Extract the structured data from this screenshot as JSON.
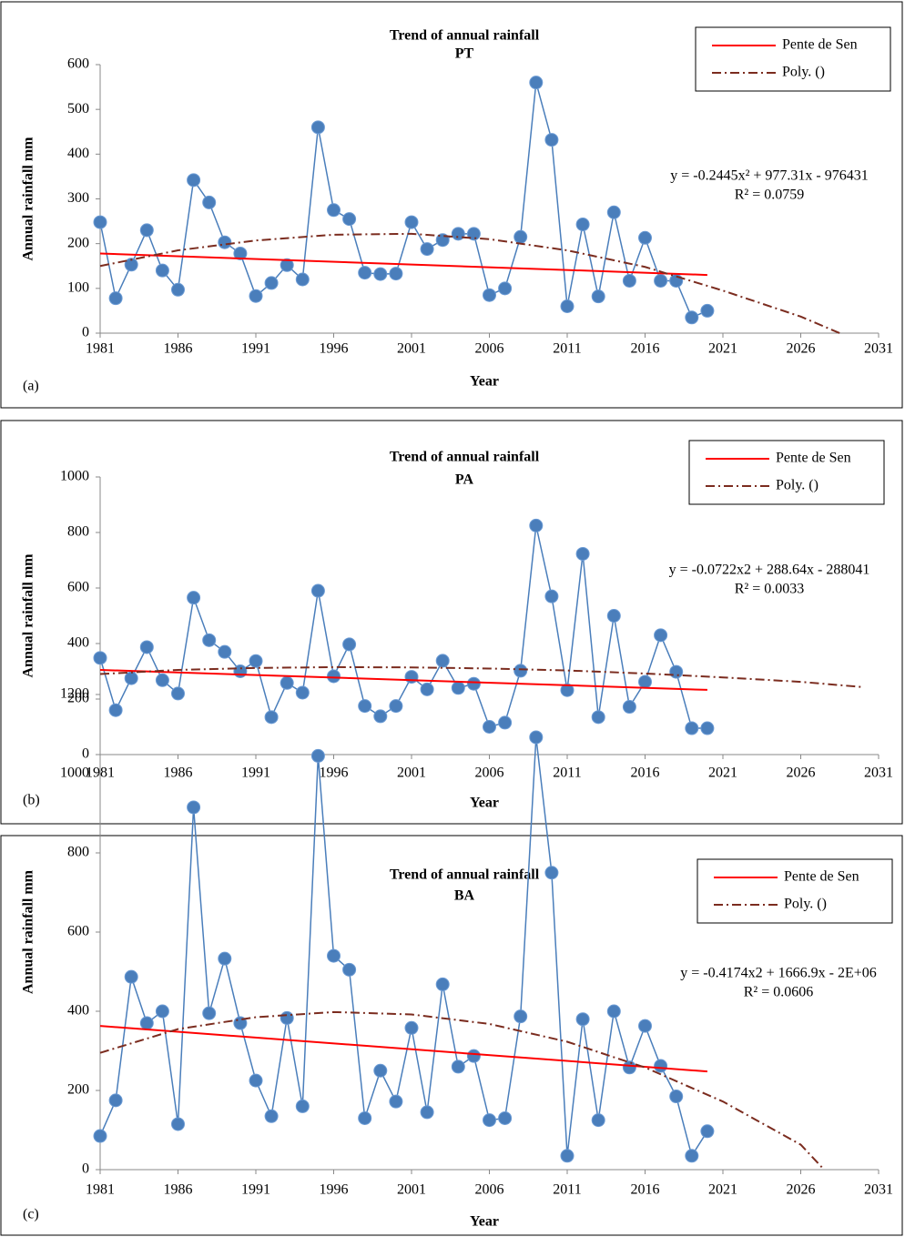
{
  "chart_data": [
    {
      "type": "line",
      "title": "Trend of annual rainfall",
      "subtitle": "PT",
      "xlabel": "Year",
      "ylabel": "Annual rainfall mm",
      "panel_label": "(a)",
      "equation": "y = -0.2445x² + 977.31x - 976431",
      "r_squared": "R² = 0.0759",
      "xlim": [
        1981,
        2031
      ],
      "xticks": [
        1981,
        1986,
        1991,
        1996,
        2001,
        2006,
        2011,
        2016,
        2021,
        2026,
        2031
      ],
      "ylim": [
        0,
        600
      ],
      "yticks": [
        0,
        100,
        200,
        300,
        400,
        500,
        600
      ],
      "series": [
        {
          "color": "#4a7ebb",
          "marker": true,
          "x": [
            1981,
            1982,
            1983,
            1984,
            1985,
            1986,
            1987,
            1988,
            1989,
            1990,
            1991,
            1992,
            1993,
            1994,
            1995,
            1996,
            1997,
            1998,
            1999,
            2000,
            2001,
            2002,
            2003,
            2004,
            2005,
            2006,
            2007,
            2008,
            2009,
            2010,
            2011,
            2012,
            2013,
            2014,
            2015,
            2016,
            2017,
            2018,
            2019,
            2020
          ],
          "values": [
            248,
            78,
            153,
            230,
            140,
            97,
            342,
            292,
            203,
            178,
            83,
            112,
            152,
            120,
            460,
            275,
            255,
            135,
            132,
            133,
            248,
            188,
            208,
            222,
            222,
            85,
            100,
            215,
            560,
            432,
            60,
            243,
            82,
            270,
            117,
            213,
            117,
            117,
            35,
            50
          ]
        },
        {
          "name": "Pente de Sen",
          "color": "#ff0000",
          "x": [
            1981,
            2020
          ],
          "values": [
            178,
            130
          ]
        },
        {
          "name": "Poly. ()",
          "color": "#7b2c1f",
          "dash": true,
          "x": [
            1981,
            1986,
            1991,
            1996,
            2001,
            2006,
            2011,
            2016,
            2021,
            2026,
            2028.5
          ],
          "values": [
            150,
            185,
            207,
            220,
            222,
            210,
            185,
            148,
            95,
            37,
            0
          ]
        }
      ]
    },
    {
      "type": "line",
      "title": "Trend of annual rainfall",
      "subtitle": "PA",
      "xlabel": "Year",
      "ylabel": "Annual rainfall mm",
      "panel_label": "(b)",
      "equation": "y = -0.0722x2 + 288.64x - 288041",
      "r_squared": "R² = 0.0033",
      "xlim": [
        1981,
        2031
      ],
      "xticks": [
        1981,
        1986,
        1991,
        1996,
        2001,
        2006,
        2011,
        2016,
        2021,
        2026,
        2031
      ],
      "ylim": [
        0,
        1000
      ],
      "yticks": [
        0,
        200,
        400,
        600,
        800,
        1000
      ],
      "series": [
        {
          "color": "#4a7ebb",
          "marker": true,
          "x": [
            1981,
            1982,
            1983,
            1984,
            1985,
            1986,
            1987,
            1988,
            1989,
            1990,
            1991,
            1992,
            1993,
            1994,
            1995,
            1996,
            1997,
            1998,
            1999,
            2000,
            2001,
            2002,
            2003,
            2004,
            2005,
            2006,
            2007,
            2008,
            2009,
            2010,
            2011,
            2012,
            2013,
            2014,
            2015,
            2016,
            2017,
            2018,
            2019,
            2020
          ],
          "values": [
            348,
            160,
            275,
            387,
            268,
            220,
            565,
            412,
            370,
            300,
            337,
            135,
            258,
            223,
            590,
            282,
            397,
            175,
            138,
            175,
            280,
            235,
            338,
            240,
            255,
            100,
            115,
            302,
            825,
            570,
            232,
            723,
            135,
            500,
            172,
            262,
            430,
            298,
            95,
            95
          ]
        },
        {
          "name": "Pente de Sen",
          "color": "#ff0000",
          "x": [
            1981,
            2020
          ],
          "values": [
            305,
            233
          ]
        },
        {
          "name": "Poly. ()",
          "color": "#7b2c1f",
          "dash": true,
          "x": [
            1981,
            1986,
            1991,
            1996,
            2001,
            2006,
            2011,
            2016,
            2021,
            2026,
            2030
          ],
          "values": [
            290,
            305,
            312,
            315,
            314,
            310,
            303,
            292,
            278,
            262,
            243
          ]
        }
      ]
    },
    {
      "type": "line",
      "title": "Trend of annual rainfall",
      "subtitle": "BA",
      "xlabel": "Year",
      "ylabel": "Annual rainfall mm",
      "panel_label": "(c)",
      "equation": "y = -0.4174x2 + 1666.9x - 2E+06",
      "r_squared": "R² = 0.0606",
      "xlim": [
        1981,
        2031
      ],
      "xticks": [
        1981,
        1986,
        1991,
        1996,
        2001,
        2006,
        2011,
        2016,
        2021,
        2026,
        2031
      ],
      "ylim": [
        0,
        1200
      ],
      "yticks": [
        0,
        200,
        400,
        600,
        800,
        1000,
        1200
      ],
      "series": [
        {
          "color": "#4a7ebb",
          "marker": true,
          "x": [
            1981,
            1982,
            1983,
            1984,
            1985,
            1986,
            1987,
            1988,
            1989,
            1990,
            1991,
            1992,
            1993,
            1994,
            1995,
            1996,
            1997,
            1998,
            1999,
            2000,
            2001,
            2002,
            2003,
            2004,
            2005,
            2006,
            2007,
            2008,
            2009,
            2010,
            2011,
            2012,
            2013,
            2014,
            2015,
            2016,
            2017,
            2018,
            2019,
            2020
          ],
          "values": [
            85,
            175,
            487,
            370,
            400,
            115,
            915,
            395,
            533,
            370,
            225,
            135,
            383,
            160,
            1045,
            540,
            505,
            130,
            250,
            172,
            358,
            145,
            468,
            260,
            287,
            125,
            130,
            387,
            1092,
            750,
            35,
            380,
            125,
            400,
            258,
            363,
            262,
            185,
            35,
            97
          ]
        },
        {
          "name": "Pente de Sen",
          "color": "#ff0000",
          "x": [
            1981,
            2020
          ],
          "values": [
            363,
            248
          ]
        },
        {
          "name": "Poly. ()",
          "color": "#7b2c1f",
          "dash": true,
          "x": [
            1981,
            1986,
            1991,
            1996,
            2001,
            2006,
            2011,
            2016,
            2021,
            2026,
            2027.5
          ],
          "values": [
            295,
            355,
            385,
            398,
            392,
            368,
            323,
            258,
            172,
            63,
            0
          ]
        }
      ]
    }
  ]
}
